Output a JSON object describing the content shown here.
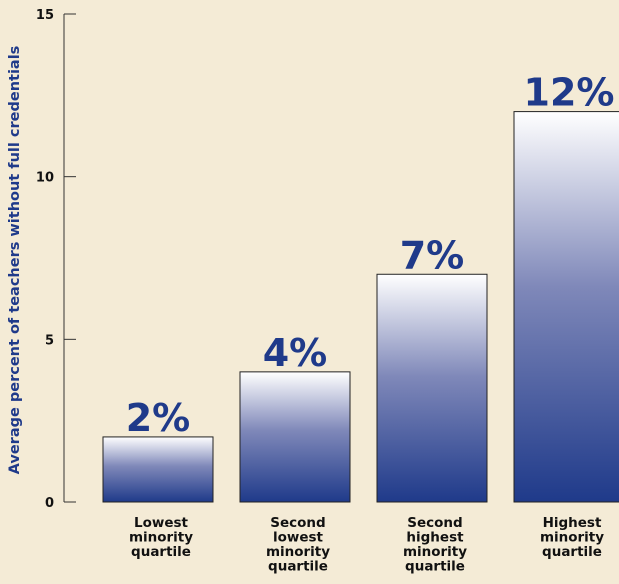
{
  "chart_data": {
    "type": "bar",
    "title": "",
    "xlabel": "",
    "ylabel": "Average percent of teachers without full credentials",
    "categories": [
      [
        "Lowest",
        "minority",
        "quartile"
      ],
      [
        "Second",
        "lowest",
        "minority",
        "quartile"
      ],
      [
        "Second",
        "highest",
        "minority",
        "quartile"
      ],
      [
        "Highest",
        "minority",
        "quartile"
      ]
    ],
    "values": [
      2,
      4,
      7,
      12
    ],
    "value_labels": [
      "2%",
      "4%",
      "7%",
      "12%"
    ],
    "ylim": [
      0,
      15
    ],
    "yticks": [
      0,
      5,
      10,
      15
    ],
    "grid": false,
    "colors": {
      "background": "#f4ebd6",
      "bar_top": "#ffffff",
      "bar_bottom": "#1f3a8a",
      "label": "#1f3a8a",
      "axis": "#333333"
    }
  }
}
